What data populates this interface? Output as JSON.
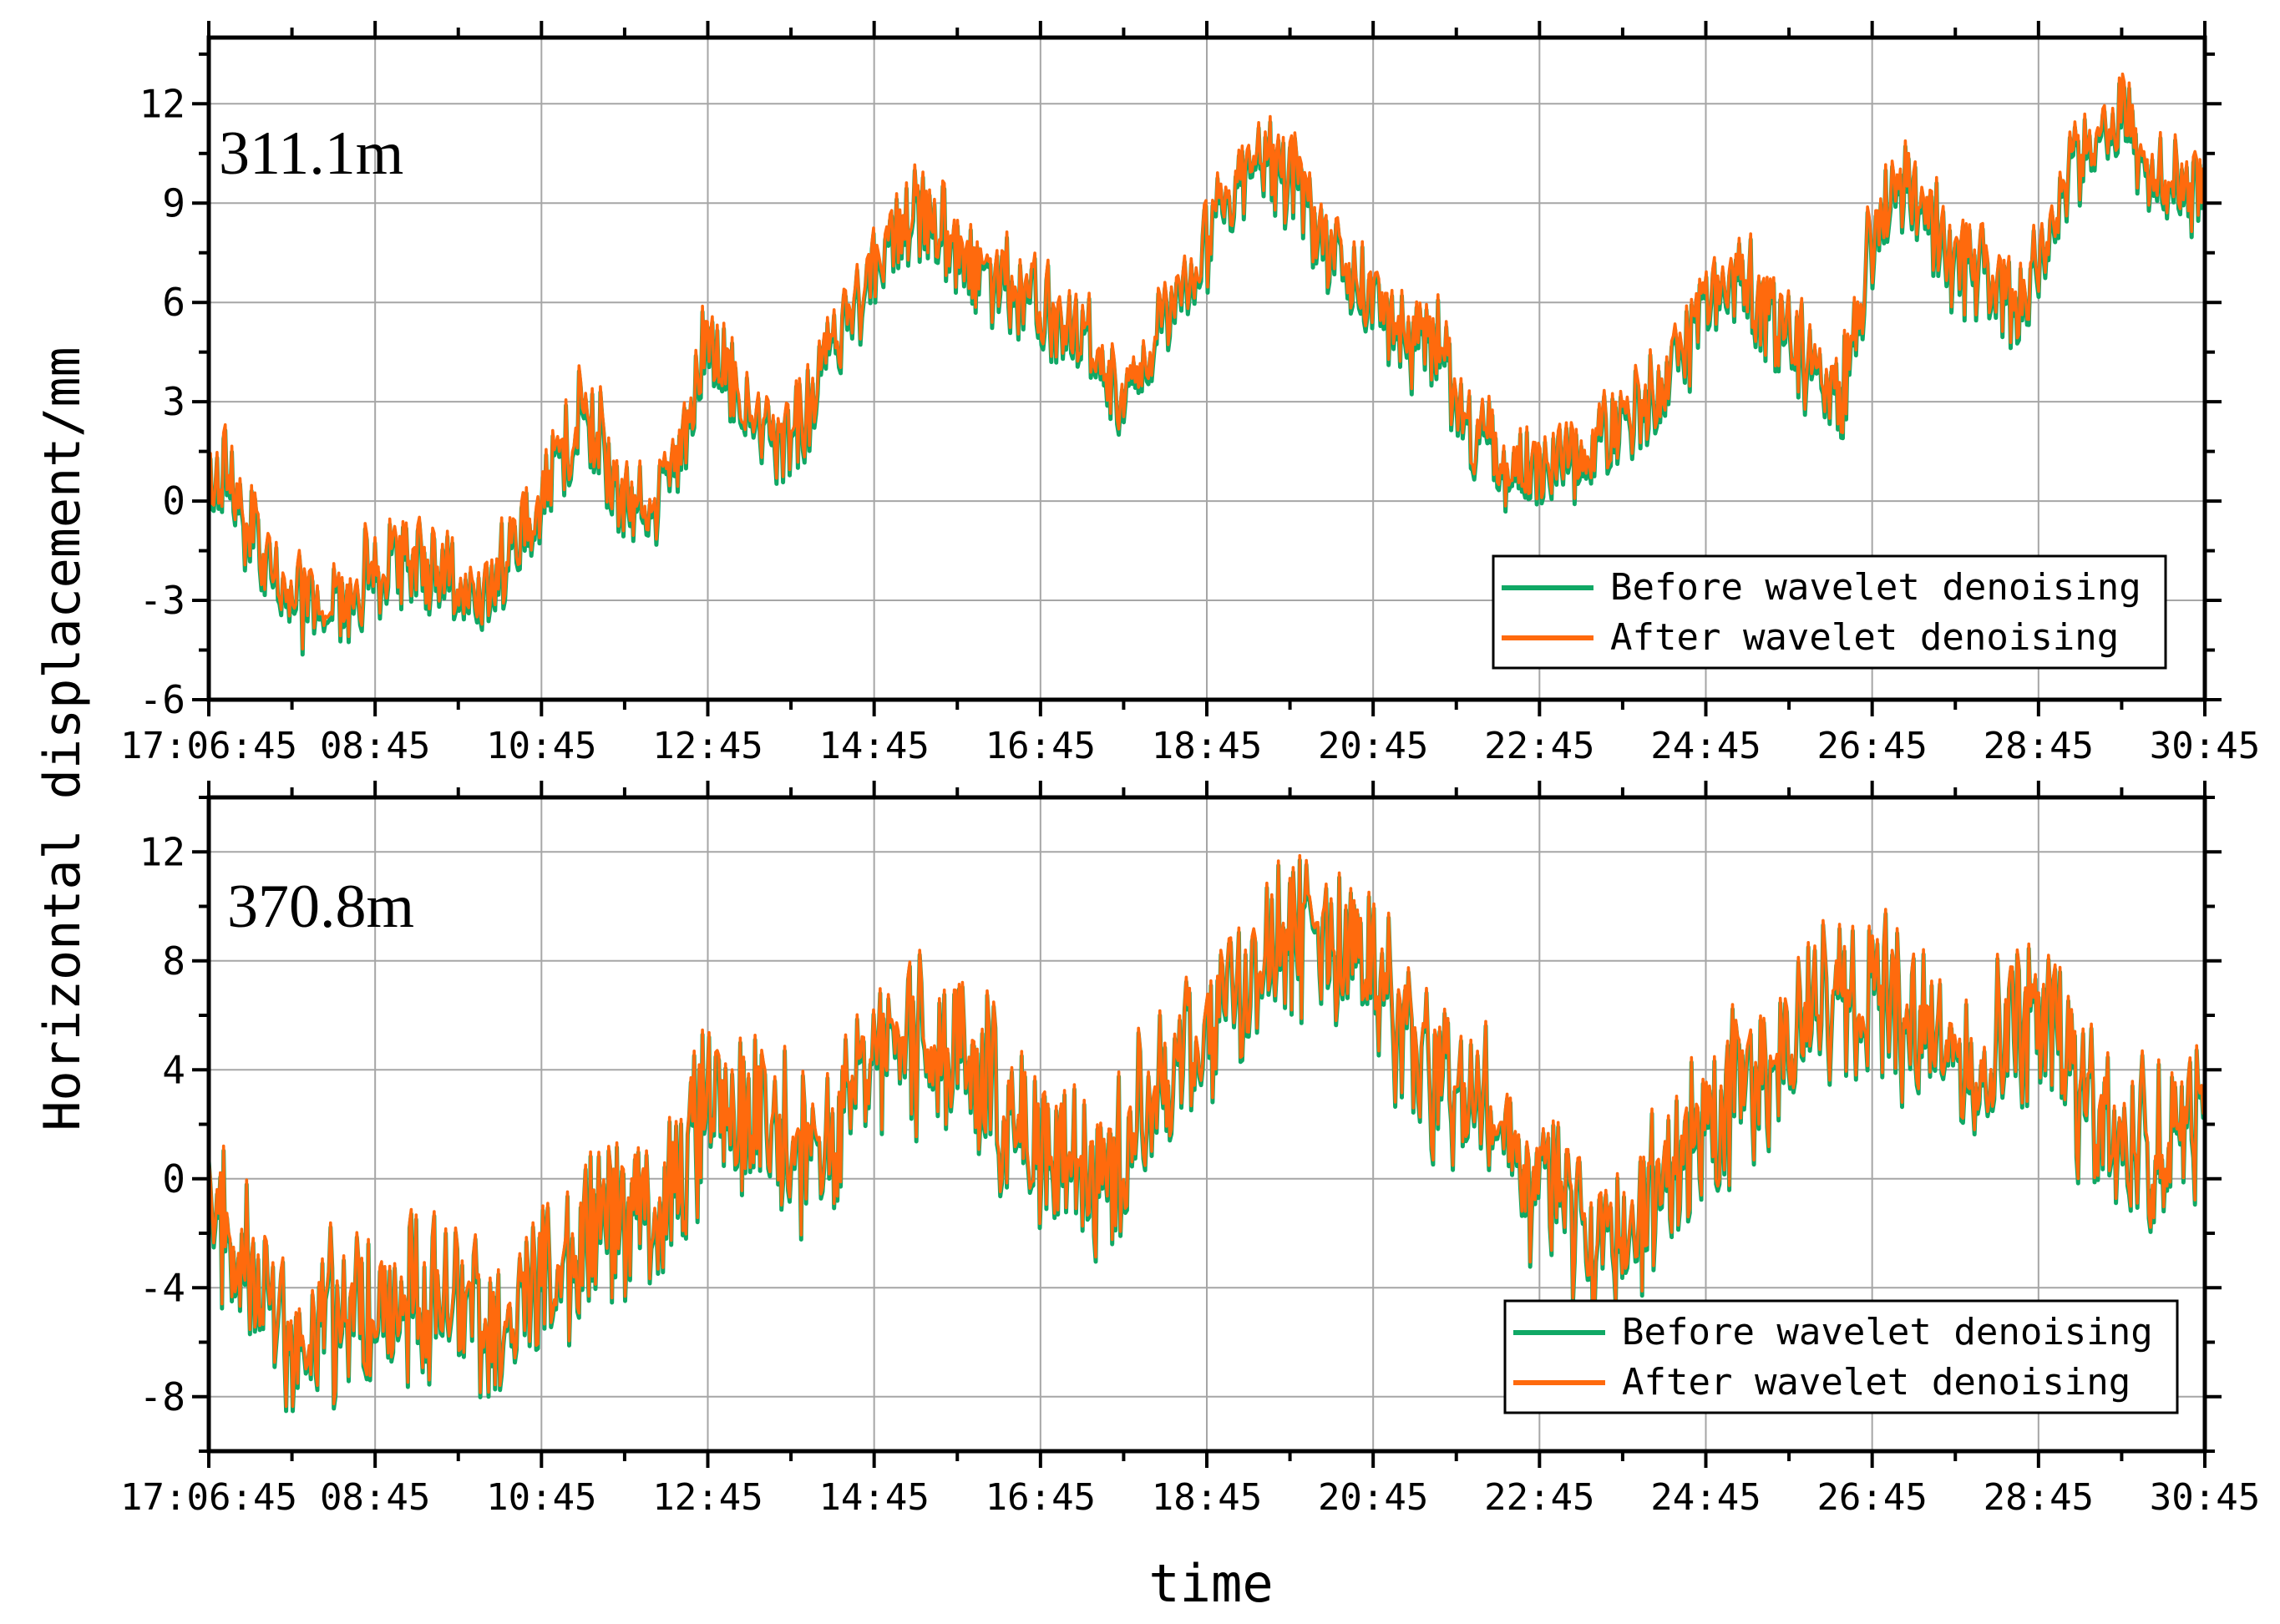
{
  "colors": {
    "before": "#10a865",
    "after": "#ff6a0d",
    "grid": "#a6a6a6",
    "axis": "#000000",
    "background": "#ffffff"
  },
  "shared_ylabel": "Horizontal displacement/mm",
  "shared_xlabel": "time",
  "chart_data": [
    {
      "type": "line",
      "panel_label": "311.1m",
      "ylim": [
        -6,
        14
      ],
      "y_ticks": [
        "-6",
        "-3",
        "0",
        "3",
        "6",
        "9",
        "12"
      ],
      "y_tick_values": [
        -6,
        -3,
        0,
        3,
        6,
        9,
        12
      ],
      "x_ticks": [
        "17:06:45",
        "08:45",
        "10:45",
        "12:45",
        "14:45",
        "16:45",
        "18:45",
        "20:45",
        "22:45",
        "24:45",
        "26:45",
        "28:45",
        "30:45"
      ],
      "grid": true,
      "legend_position": "bottom-right",
      "legend": [
        "Before wavelet denoising",
        "After wavelet denoising"
      ],
      "noise_amplitude": 1.2,
      "series": [
        {
          "name": "Before wavelet denoising",
          "x": [
            0,
            0.1,
            0.25,
            0.5,
            0.8,
            1.0,
            1.3,
            1.6,
            1.8,
            2.0,
            2.25,
            2.35,
            2.45,
            2.6,
            2.8,
            3.0,
            3.1,
            3.3,
            3.5,
            3.7,
            3.8,
            4.0,
            4.3,
            4.6,
            5.0,
            5.3,
            5.5,
            5.7,
            6.0,
            6.3,
            6.5,
            6.7,
            7.0,
            7.2,
            7.4,
            7.5,
            7.8,
            8.0,
            8.5,
            8.9,
            9.0,
            9.2,
            9.5,
            9.8,
            10.0,
            10.2,
            10.5,
            10.7,
            10.9,
            11.2,
            11.5,
            11.6,
            11.7,
            11.9,
            12.0,
            12.2,
            12.3,
            12.5,
            12.7,
            12.9,
            13.1,
            13.3,
            13.5,
            13.6,
            13.85
          ],
          "values": [
            0,
            1,
            -1,
            -3,
            -3,
            -2,
            -2,
            -3,
            -2,
            0,
            3,
            2,
            0,
            0,
            1,
            5,
            4,
            2,
            2,
            4,
            5,
            7,
            9,
            7,
            6,
            5,
            3,
            5,
            8,
            10,
            10,
            8,
            6,
            5,
            5,
            3,
            1,
            1,
            2,
            5,
            6,
            7,
            5,
            3,
            8,
            10,
            7,
            7,
            6,
            10,
            12,
            10,
            10,
            9,
            10,
            9,
            10,
            9,
            11,
            11,
            12,
            11,
            10,
            9,
            7
          ]
        },
        {
          "name": "After wavelet denoising",
          "x": [
            0,
            0.1,
            0.25,
            0.5,
            0.8,
            1.0,
            1.3,
            1.6,
            1.8,
            2.0,
            2.25,
            2.35,
            2.45,
            2.6,
            2.8,
            3.0,
            3.1,
            3.3,
            3.5,
            3.7,
            3.8,
            4.0,
            4.3,
            4.6,
            5.0,
            5.3,
            5.5,
            5.7,
            6.0,
            6.3,
            6.5,
            6.7,
            7.0,
            7.2,
            7.4,
            7.5,
            7.8,
            8.0,
            8.5,
            8.9,
            9.0,
            9.2,
            9.5,
            9.8,
            10.0,
            10.2,
            10.5,
            10.7,
            10.9,
            11.2,
            11.5,
            11.6,
            11.7,
            11.9,
            12.0,
            12.2,
            12.3,
            12.5,
            12.7,
            12.9,
            13.1,
            13.3,
            13.5,
            13.6,
            13.85
          ],
          "values": [
            0,
            1,
            -1,
            -3,
            -3,
            -2,
            -2,
            -3,
            -2,
            0,
            3,
            2,
            0,
            0,
            1,
            5,
            4,
            2,
            2,
            4,
            5,
            7,
            9,
            7,
            6,
            5,
            3,
            5,
            8,
            10,
            10,
            8,
            6,
            5,
            5,
            3,
            1,
            1,
            2,
            5,
            6,
            7,
            5,
            3,
            8,
            10,
            7,
            7,
            6,
            10,
            12,
            10,
            10,
            9,
            10,
            9,
            10,
            9,
            11,
            11,
            12,
            11,
            10,
            9,
            7
          ]
        }
      ]
    },
    {
      "type": "line",
      "panel_label": "370.8m",
      "ylim": [
        -10,
        14
      ],
      "y_ticks": [
        "-8",
        "-4",
        "0",
        "4",
        "8",
        "12"
      ],
      "y_tick_values": [
        -8,
        -4,
        0,
        4,
        8,
        12
      ],
      "x_ticks": [
        "17:06:45",
        "08:45",
        "10:45",
        "12:45",
        "14:45",
        "16:45",
        "18:45",
        "20:45",
        "22:45",
        "24:45",
        "26:45",
        "28:45",
        "30:45"
      ],
      "grid": true,
      "legend_position": "bottom-right",
      "legend": [
        "Before wavelet denoising",
        "After wavelet denoising"
      ],
      "noise_amplitude": 2.6,
      "series": [
        {
          "name": "Before wavelet denoising",
          "x": [
            0,
            0.2,
            0.5,
            0.8,
            1.0,
            1.3,
            1.6,
            1.9,
            2.1,
            2.3,
            2.5,
            2.7,
            3.0,
            3.3,
            3.6,
            4.0,
            4.3,
            4.6,
            5.0,
            5.3,
            5.6,
            6.0,
            6.3,
            6.6,
            7.0,
            7.2,
            7.5,
            7.8,
            8.0,
            8.3,
            8.6,
            9.0,
            9.3,
            9.6,
            10.0,
            10.3,
            10.6,
            11.0,
            11.3,
            11.6,
            12.0,
            12.3,
            12.6,
            12.9,
            13.1,
            13.3,
            13.5,
            13.7,
            13.85
          ],
          "values": [
            -1,
            -3,
            -6,
            -5,
            -5,
            -4,
            -5,
            -5,
            -3,
            -2,
            -1,
            -2,
            3,
            2,
            1,
            4,
            5,
            4,
            1,
            0,
            2,
            6,
            8,
            9,
            8,
            5,
            3,
            2,
            0,
            -2,
            -1,
            2,
            4,
            6,
            7,
            6,
            4,
            6,
            3,
            1,
            2,
            1,
            2,
            2,
            3,
            0,
            0,
            5,
            4
          ]
        },
        {
          "name": "After wavelet denoising",
          "x": [
            0,
            0.2,
            0.5,
            0.8,
            1.0,
            1.3,
            1.6,
            1.9,
            2.1,
            2.3,
            2.5,
            2.7,
            3.0,
            3.3,
            3.6,
            4.0,
            4.3,
            4.6,
            5.0,
            5.3,
            5.6,
            6.0,
            6.3,
            6.6,
            7.0,
            7.2,
            7.5,
            7.8,
            8.0,
            8.3,
            8.6,
            9.0,
            9.3,
            9.6,
            10.0,
            10.3,
            10.6,
            11.0,
            11.3,
            11.6,
            12.0,
            12.3,
            12.6,
            12.9,
            13.1,
            13.3,
            13.5,
            13.7,
            13.85
          ],
          "values": [
            -1,
            -3,
            -6,
            -5,
            -5,
            -4,
            -5,
            -5,
            -3,
            -2,
            -1,
            -2,
            3,
            2,
            1,
            4,
            5,
            4,
            1,
            0,
            2,
            6,
            8,
            9,
            8,
            5,
            3,
            2,
            0,
            -2,
            -1,
            2,
            4,
            6,
            7,
            6,
            4,
            6,
            3,
            1,
            2,
            1,
            2,
            2,
            3,
            0,
            0,
            5,
            4
          ]
        }
      ]
    }
  ]
}
